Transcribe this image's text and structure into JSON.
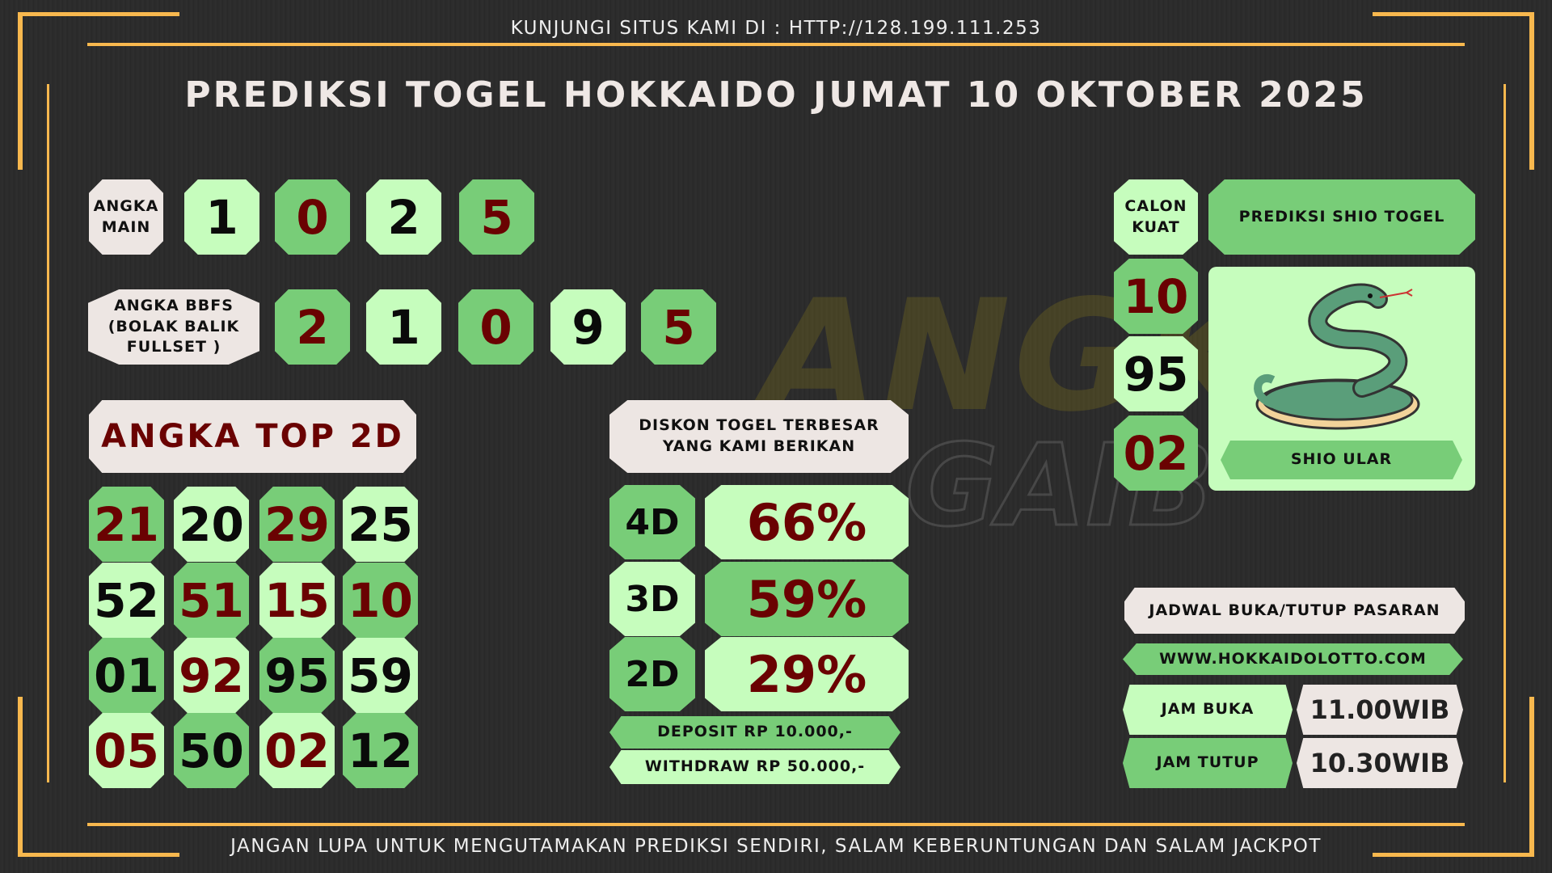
{
  "header": {
    "visit": "KUNJUNGI SITUS KAMI DI : HTTP://128.199.111.253",
    "title": "PREDIKSI TOGEL HOKKAIDO JUMAT 10 OKTOBER 2025"
  },
  "watermark": "ANGKA GAIB",
  "colors": {
    "light": "#c6fdbd",
    "medium": "#78cd78",
    "offwhite": "#ede6e3",
    "red": "#6a0202",
    "orange": "#f8b84e",
    "background": "#2a2a2a"
  },
  "angka_main": {
    "label": "ANGKA MAIN",
    "digits": [
      {
        "v": "1",
        "bg": "light",
        "c": "blk"
      },
      {
        "v": "0",
        "bg": "mid",
        "c": "red"
      },
      {
        "v": "2",
        "bg": "light",
        "c": "blk"
      },
      {
        "v": "5",
        "bg": "mid",
        "c": "red"
      }
    ]
  },
  "bbfs": {
    "label": "ANGKA BBFS (BOLAK BALIK FULLSET )",
    "digits": [
      {
        "v": "2",
        "bg": "mid",
        "c": "red"
      },
      {
        "v": "1",
        "bg": "light",
        "c": "blk"
      },
      {
        "v": "0",
        "bg": "mid",
        "c": "red"
      },
      {
        "v": "9",
        "bg": "light",
        "c": "blk"
      },
      {
        "v": "5",
        "bg": "mid",
        "c": "red"
      }
    ]
  },
  "top2d": {
    "label": "ANGKA TOP 2D",
    "cells": [
      {
        "v": "21",
        "bg": "mid",
        "c": "red"
      },
      {
        "v": "20",
        "bg": "light",
        "c": "blk"
      },
      {
        "v": "29",
        "bg": "mid",
        "c": "red"
      },
      {
        "v": "25",
        "bg": "light",
        "c": "blk"
      },
      {
        "v": "52",
        "bg": "light",
        "c": "blk"
      },
      {
        "v": "51",
        "bg": "mid",
        "c": "red"
      },
      {
        "v": "15",
        "bg": "light",
        "c": "red"
      },
      {
        "v": "10",
        "bg": "mid",
        "c": "red"
      },
      {
        "v": "01",
        "bg": "mid",
        "c": "blk"
      },
      {
        "v": "92",
        "bg": "light",
        "c": "red"
      },
      {
        "v": "95",
        "bg": "mid",
        "c": "blk"
      },
      {
        "v": "59",
        "bg": "light",
        "c": "blk"
      },
      {
        "v": "05",
        "bg": "light",
        "c": "red"
      },
      {
        "v": "50",
        "bg": "mid",
        "c": "blk"
      },
      {
        "v": "02",
        "bg": "light",
        "c": "red"
      },
      {
        "v": "12",
        "bg": "mid",
        "c": "blk"
      }
    ]
  },
  "diskon": {
    "label": "DISKON TOGEL TERBESAR YANG KAMI BERIKAN",
    "rows": [
      {
        "type": "4D",
        "value": "66%",
        "lbg": "mid",
        "vbg": "light"
      },
      {
        "type": "3D",
        "value": "59%",
        "lbg": "light",
        "vbg": "mid"
      },
      {
        "type": "2D",
        "value": "29%",
        "lbg": "mid",
        "vbg": "light"
      }
    ],
    "deposit": "DEPOSIT RP 10.000,-",
    "withdraw": "WITHDRAW RP 50.000,-"
  },
  "calon_kuat": {
    "label": "CALON KUAT",
    "numbers": [
      {
        "v": "10",
        "bg": "mid",
        "c": "red"
      },
      {
        "v": "95",
        "bg": "light",
        "c": "blk"
      },
      {
        "v": "02",
        "bg": "mid",
        "c": "red"
      }
    ]
  },
  "shio": {
    "title": "PREDIKSI SHIO TOGEL",
    "name": "SHIO ULAR",
    "icon": "snake-icon"
  },
  "jadwal": {
    "title": "JADWAL BUKA/TUTUP PASARAN",
    "site": "WWW.HOKKAIDOLOTTO.COM",
    "buka_label": "JAM BUKA",
    "buka": "11.00WIB",
    "tutup_label": "JAM TUTUP",
    "tutup": "10.30WIB"
  },
  "footer": "JANGAN LUPA UNTUK MENGUTAMAKAN PREDIKSI SENDIRI, SALAM KEBERUNTUNGAN DAN SALAM JACKPOT"
}
